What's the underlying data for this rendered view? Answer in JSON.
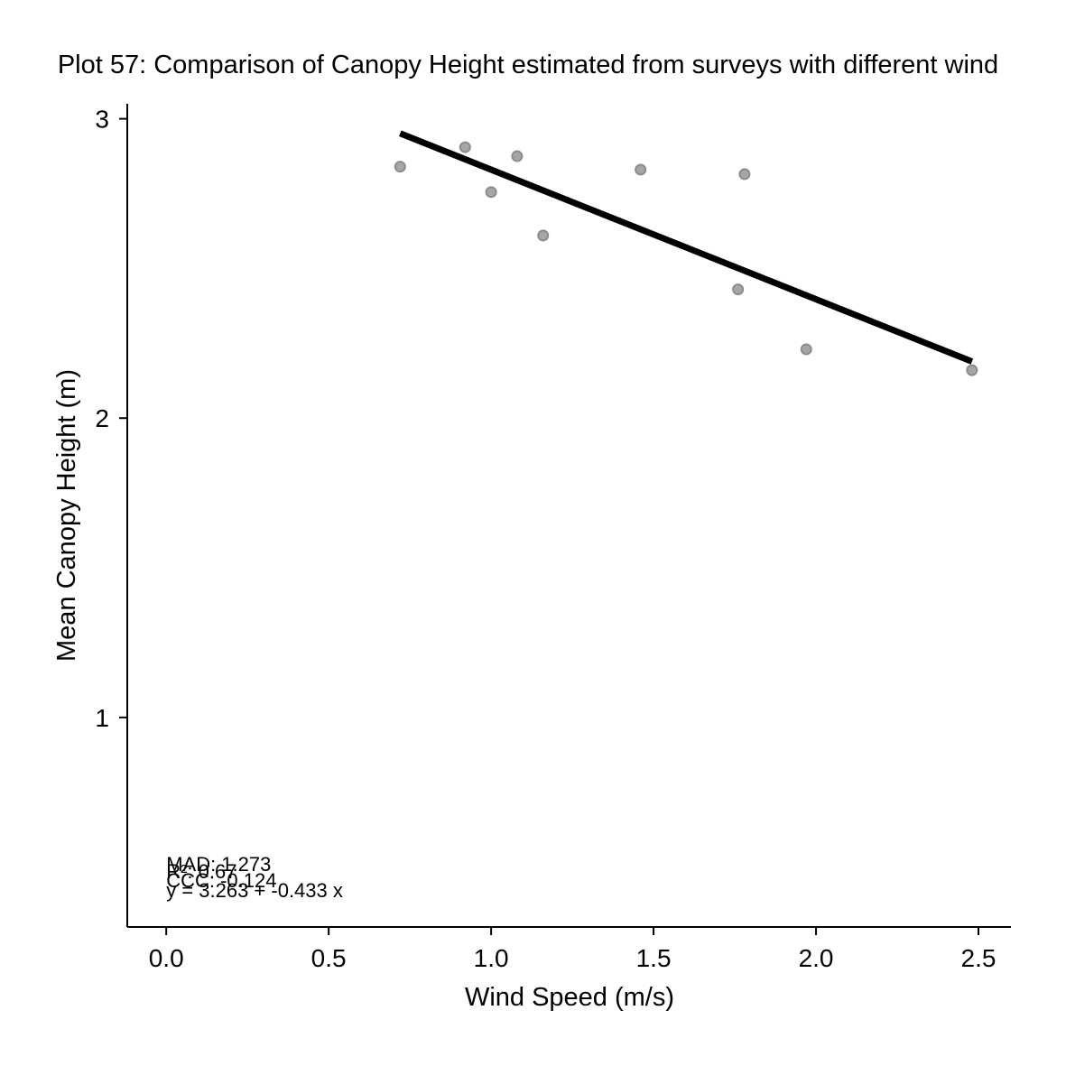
{
  "chart_data": {
    "type": "scatter",
    "title": "Plot 57: Comparison of Canopy Height estimated from surveys with different wind",
    "xlabel": "Wind Speed (m/s)",
    "ylabel": "Mean Canopy Height (m)",
    "xlim": [
      -0.12,
      2.6
    ],
    "ylim": [
      0.3,
      3.05
    ],
    "xticks": [
      0.0,
      0.5,
      1.0,
      1.5,
      2.0,
      2.5
    ],
    "xtick_labels": [
      "0.0",
      "0.5",
      "1.0",
      "1.5",
      "2.0",
      "2.5"
    ],
    "yticks": [
      1,
      2,
      3
    ],
    "ytick_labels": [
      "1",
      "2",
      "3"
    ],
    "grid": false,
    "points": [
      {
        "x": 0.72,
        "y": 2.84
      },
      {
        "x": 0.92,
        "y": 2.905
      },
      {
        "x": 1.0,
        "y": 2.755
      },
      {
        "x": 1.08,
        "y": 2.875
      },
      {
        "x": 1.16,
        "y": 2.61
      },
      {
        "x": 1.46,
        "y": 2.83
      },
      {
        "x": 1.76,
        "y": 2.43
      },
      {
        "x": 1.78,
        "y": 2.815
      },
      {
        "x": 1.97,
        "y": 2.23
      },
      {
        "x": 2.48,
        "y": 2.16
      }
    ],
    "point_color": "#a6a6a6",
    "point_edge_color": "#8c8c8c",
    "fit_line": {
      "intercept": 3.263,
      "slope": -0.433,
      "x_range": [
        0.72,
        2.48
      ],
      "color": "#000000"
    },
    "annotations": [
      "MAD: 1.273",
      "R²: 0.67",
      "CCC: -0.124",
      "y = 3.263 + -0.433 x"
    ]
  }
}
